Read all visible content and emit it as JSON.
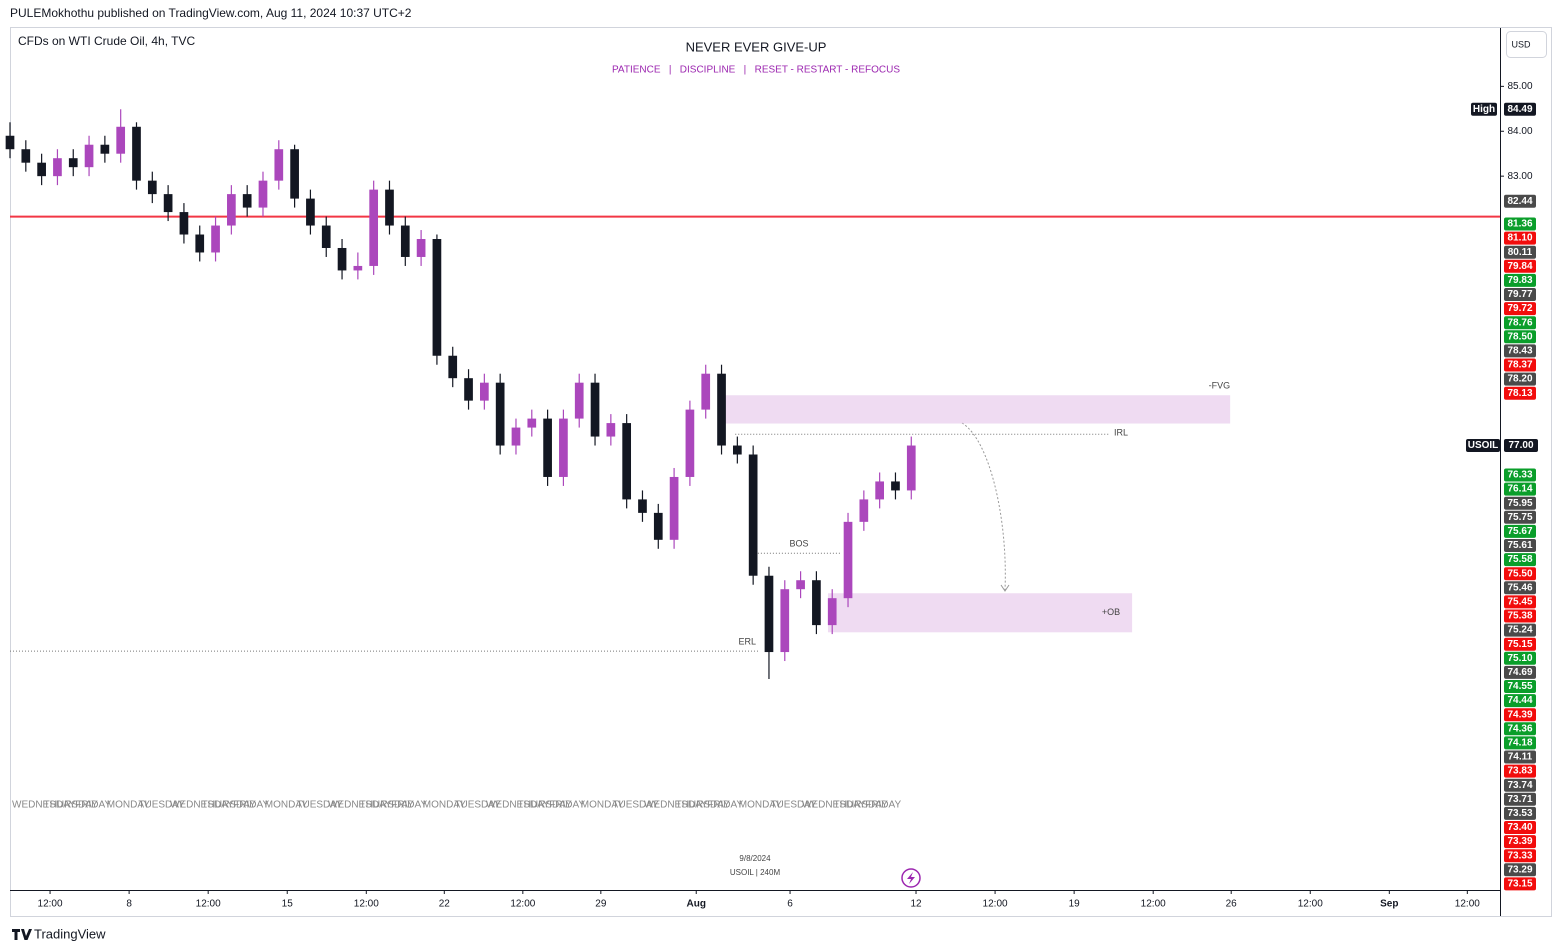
{
  "header": {
    "publisher": "PULEMokhothu published on TradingView.com, Aug 11, 2024 10:37 UTC+2",
    "brand": "TradingView"
  },
  "chart_data": {
    "type": "candlestick",
    "symbol_legend": "CFDs on WTI Crude Oil, 4h, TVC",
    "title": "NEVER EVER GIVE-UP",
    "subtitle": "PATIENCE   |   DISCIPLINE   |   RESET - RESTART - REFOCUS",
    "currency": "USD",
    "x": [
      0,
      3,
      6,
      9,
      12,
      15,
      18,
      21,
      24,
      27,
      30,
      33,
      36,
      39,
      42,
      45,
      48,
      51,
      54,
      57,
      60,
      63,
      66,
      69,
      72,
      75,
      78,
      81,
      84,
      87,
      90,
      93,
      96,
      99,
      102,
      105,
      108,
      111,
      114,
      117,
      120,
      123,
      126,
      129,
      132,
      135,
      138,
      141,
      144,
      147,
      150,
      153,
      156,
      159,
      162,
      165,
      168,
      171
    ],
    "series": [
      {
        "name": "USOIL",
        "up_color": "#ab47bc",
        "down_color": "#131722",
        "open": [
          83.9,
          83.6,
          83.3,
          83.0,
          83.4,
          83.2,
          83.7,
          83.5,
          84.1,
          82.9,
          82.6,
          82.2,
          81.7,
          81.3,
          81.9,
          82.6,
          82.3,
          82.9,
          83.6,
          82.5,
          81.9,
          81.4,
          80.9,
          81.0,
          82.7,
          81.9,
          81.2,
          81.6,
          79.0,
          78.5,
          78.0,
          78.4,
          77.0,
          77.4,
          77.6,
          76.3,
          77.6,
          78.4,
          77.2,
          77.5,
          75.8,
          75.5,
          74.9,
          76.3,
          77.8,
          78.6,
          77.0,
          76.8,
          74.1,
          72.4,
          73.8,
          74.0,
          73.0,
          73.6,
          75.3,
          75.8,
          76.2,
          76.0
        ],
        "high": [
          84.2,
          83.8,
          83.5,
          83.6,
          83.6,
          83.9,
          83.9,
          84.49,
          84.2,
          83.1,
          82.8,
          82.4,
          81.9,
          82.1,
          82.8,
          82.8,
          83.1,
          83.8,
          83.7,
          82.7,
          82.1,
          81.6,
          81.3,
          82.9,
          82.9,
          82.1,
          81.8,
          81.7,
          79.2,
          78.7,
          78.6,
          78.6,
          77.6,
          77.8,
          77.8,
          77.8,
          78.6,
          78.6,
          77.7,
          77.7,
          76.0,
          75.7,
          76.5,
          78.0,
          78.8,
          78.8,
          77.2,
          77.0,
          74.3,
          74.0,
          74.2,
          74.2,
          73.8,
          75.5,
          76.0,
          76.4,
          76.4,
          77.2
        ],
        "low": [
          83.4,
          83.1,
          82.8,
          82.8,
          83.0,
          83.0,
          83.3,
          83.3,
          82.7,
          82.4,
          82.0,
          81.5,
          81.1,
          81.1,
          81.7,
          82.1,
          82.1,
          82.7,
          82.3,
          81.7,
          81.2,
          80.7,
          80.7,
          80.8,
          81.7,
          81.0,
          81.0,
          78.8,
          78.3,
          77.8,
          77.8,
          76.8,
          76.8,
          77.2,
          76.1,
          76.1,
          77.4,
          77.0,
          77.0,
          75.6,
          75.3,
          74.7,
          74.7,
          76.1,
          77.6,
          76.8,
          76.6,
          73.9,
          71.8,
          72.2,
          73.6,
          72.8,
          72.8,
          73.4,
          75.1,
          75.6,
          75.8,
          75.8
        ],
        "close": [
          83.6,
          83.3,
          83.0,
          83.4,
          83.2,
          83.7,
          83.5,
          84.1,
          82.9,
          82.6,
          82.2,
          81.7,
          81.3,
          81.9,
          82.6,
          82.3,
          82.9,
          83.6,
          82.5,
          81.9,
          81.4,
          80.9,
          81.0,
          82.7,
          81.9,
          81.2,
          81.6,
          79.0,
          78.5,
          78.0,
          78.4,
          77.0,
          77.4,
          77.6,
          76.3,
          77.6,
          78.4,
          77.2,
          77.5,
          75.8,
          75.5,
          74.9,
          76.3,
          77.8,
          78.6,
          77.0,
          76.8,
          74.1,
          72.4,
          73.8,
          74.0,
          73.0,
          73.6,
          75.3,
          75.8,
          76.2,
          76.0,
          77.0
        ]
      }
    ],
    "xlim": [
      0,
      282.7
    ],
    "xticks": [
      {
        "value": 7.6,
        "label": "12:00"
      },
      {
        "value": 22.6,
        "label": "8"
      },
      {
        "value": 37.6,
        "label": "12:00"
      },
      {
        "value": 52.6,
        "label": "15"
      },
      {
        "value": 67.6,
        "label": "12:00"
      },
      {
        "value": 82.4,
        "label": "22"
      },
      {
        "value": 97.3,
        "label": "12:00"
      },
      {
        "value": 112.1,
        "label": "29"
      },
      {
        "value": 130.2,
        "label": "Aug"
      },
      {
        "value": 148.0,
        "label": "6"
      },
      {
        "value": 171.9,
        "label": "12"
      },
      {
        "value": 186.9,
        "label": "12:00"
      },
      {
        "value": 201.9,
        "label": "19"
      },
      {
        "value": 216.9,
        "label": "12:00"
      },
      {
        "value": 231.7,
        "label": "26"
      },
      {
        "value": 246.7,
        "label": "12:00"
      },
      {
        "value": 261.7,
        "label": "Sep"
      },
      {
        "value": 276.5,
        "label": "12:00"
      }
    ],
    "ylim": [
      67.1,
      86.3
    ],
    "yticks": [
      {
        "value": 85,
        "label": "85.00"
      },
      {
        "value": 84,
        "label": "84.00"
      },
      {
        "value": 83,
        "label": "83.00"
      }
    ],
    "day_labels": [
      "WEDNESDAY",
      "THURSDAY",
      "FRIDAY",
      "MONDAY",
      "TUESDAY",
      "WEDNESDAY",
      "THURSDAY",
      "FRIDAY",
      "MONDAY",
      "TUESDAY",
      "WEDNESDAY",
      "THURSDAY",
      "FRIDAY",
      "MONDAY",
      "TUESDAY",
      "WEDNESDAY",
      "THURSDAY",
      "FRIDAY",
      "MONDAY",
      "TUESDAY",
      "WEDNESDAY",
      "THURSDAY",
      "FRIDAY",
      "MONDAY",
      "TUESDAY",
      "WEDNESDAY",
      "THURSDAY",
      "FRIDAY"
    ],
    "high_marker": {
      "label": "High",
      "value": 84.49
    },
    "last_price": {
      "label": "USOIL",
      "value": 77,
      "value_label": "77.00"
    },
    "line_marker": {
      "value": 82.44
    },
    "price_labels": [
      {
        "value": 81.36,
        "color": "#0a9e2a"
      },
      {
        "value": 81.1,
        "label": "81.10",
        "color": "#f20c0c"
      },
      {
        "value": 80.11,
        "color": "#4a4a4a"
      },
      {
        "value": 79.84,
        "color": "#f20c0c"
      },
      {
        "value": 79.83,
        "color": "#0a9e2a"
      },
      {
        "value": 79.77,
        "color": "#4a4a4a"
      },
      {
        "value": 79.72,
        "color": "#f20c0c"
      },
      {
        "value": 78.76,
        "color": "#0a9e2a"
      },
      {
        "value": 78.5,
        "label": "78.50",
        "color": "#0a9e2a"
      },
      {
        "value": 78.43,
        "color": "#4a4a4a"
      },
      {
        "value": 78.37,
        "color": "#f20c0c"
      },
      {
        "value": 78.2,
        "label": "78.20",
        "color": "#4a4a4a"
      },
      {
        "value": 78.13,
        "color": "#f20c0c"
      },
      {
        "value": 76.33,
        "color": "#0a9e2a"
      },
      {
        "value": 76.14,
        "color": "#0a9e2a"
      },
      {
        "value": 75.95,
        "color": "#4a4a4a"
      },
      {
        "value": 75.75,
        "color": "#4a4a4a"
      },
      {
        "value": 75.67,
        "color": "#0a9e2a"
      },
      {
        "value": 75.61,
        "color": "#4a4a4a"
      },
      {
        "value": 75.58,
        "color": "#0a9e2a"
      },
      {
        "value": 75.5,
        "label": "75.50",
        "color": "#f20c0c"
      },
      {
        "value": 75.46,
        "color": "#4a4a4a"
      },
      {
        "value": 75.45,
        "color": "#f20c0c"
      },
      {
        "value": 75.38,
        "color": "#f20c0c"
      },
      {
        "value": 75.24,
        "color": "#4a4a4a"
      },
      {
        "value": 75.15,
        "color": "#f20c0c"
      },
      {
        "value": 75.1,
        "label": "75.10",
        "color": "#0a9e2a"
      },
      {
        "value": 74.69,
        "color": "#4a4a4a"
      },
      {
        "value": 74.55,
        "color": "#0a9e2a"
      },
      {
        "value": 74.44,
        "color": "#0a9e2a"
      },
      {
        "value": 74.39,
        "color": "#f20c0c"
      },
      {
        "value": 74.36,
        "color": "#0a9e2a"
      },
      {
        "value": 74.18,
        "color": "#0a9e2a"
      },
      {
        "value": 74.11,
        "color": "#4a4a4a"
      },
      {
        "value": 73.83,
        "color": "#f20c0c"
      },
      {
        "value": 73.74,
        "color": "#4a4a4a"
      },
      {
        "value": 73.71,
        "color": "#4a4a4a"
      },
      {
        "value": 73.53,
        "color": "#4a4a4a"
      },
      {
        "value": 73.4,
        "label": "73.40",
        "color": "#f20c0c"
      },
      {
        "value": 73.39,
        "color": "#f20c0c"
      },
      {
        "value": 73.33,
        "color": "#f20c0c"
      },
      {
        "value": 73.29,
        "color": "#4a4a4a"
      },
      {
        "value": 73.15,
        "color": "#f20c0c"
      }
    ],
    "zones": [
      {
        "label": "-FVG",
        "x": [
          134.3,
          231.5
        ],
        "y": [
          77.49,
          78.12
        ],
        "label_pos": "above"
      },
      {
        "label": "+OB",
        "x": [
          155.2,
          212.9
        ],
        "y": [
          72.84,
          73.71
        ],
        "label_pos": "inside"
      }
    ],
    "levels": [
      {
        "label": "IRL",
        "value": 77.25,
        "x": [
          137.6,
          208.7
        ],
        "label_pos": "end"
      },
      {
        "label": "BOS",
        "value": 74.6,
        "x": [
          141.9,
          157.5
        ],
        "label_pos": "above"
      },
      {
        "label": "ERL",
        "value": 72.42,
        "x": [
          0,
          142.3
        ],
        "label_pos": "above-end"
      },
      {
        "value": 82.1,
        "x": [
          0,
          282.7
        ],
        "color": "#f23645"
      }
    ],
    "footnote": {
      "date": "9/8/2024",
      "symbol": "USOIL | 240M"
    }
  }
}
